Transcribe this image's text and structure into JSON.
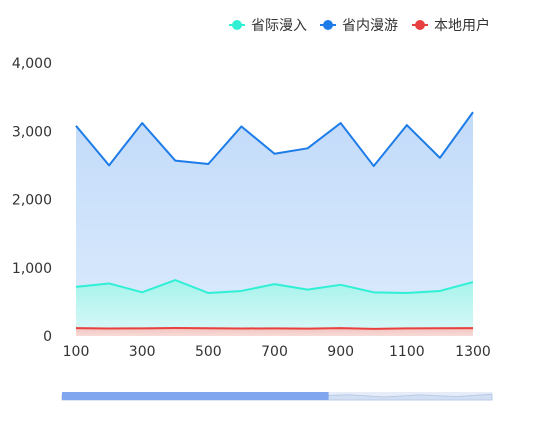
{
  "chart_data": {
    "type": "area",
    "x": [
      100,
      200,
      300,
      400,
      500,
      600,
      700,
      800,
      900,
      1000,
      1100,
      1200,
      1300
    ],
    "x_ticks": [
      "100",
      "300",
      "500",
      "700",
      "900",
      "1100",
      "1300"
    ],
    "y_ticks": [
      "0",
      "1,000",
      "2,000",
      "3,000",
      "4,000"
    ],
    "ylim": [
      0,
      4000
    ],
    "grid": false,
    "legend_position": "top-right",
    "series": [
      {
        "name": "省际漫入",
        "color": "#2ff0d4",
        "values": [
          720,
          770,
          640,
          820,
          630,
          660,
          760,
          680,
          750,
          640,
          630,
          660,
          790
        ]
      },
      {
        "name": "省内漫游",
        "color": "#1e7ce8",
        "values": [
          3080,
          2500,
          3120,
          2570,
          2520,
          3070,
          2670,
          2750,
          3120,
          2490,
          3090,
          2610,
          3280
        ]
      },
      {
        "name": "本地用户",
        "color": "#e8403f",
        "values": [
          115,
          110,
          112,
          118,
          114,
          110,
          112,
          108,
          115,
          105,
          112,
          113,
          115
        ]
      }
    ],
    "zoom_slider": {
      "range_fraction": [
        0,
        0.62
      ]
    }
  }
}
